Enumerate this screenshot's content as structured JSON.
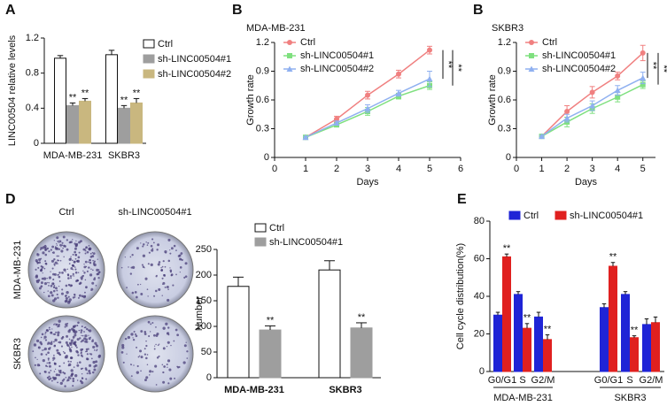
{
  "chart_data": [
    {
      "type": "bar",
      "panel": "A",
      "ylabel": "LINC00504 relative levels",
      "categories": [
        "MDA-MB-231",
        "SKBR3"
      ],
      "series": [
        {
          "name": "Ctrl",
          "color": "#ffffff",
          "values": [
            0.97,
            1.01
          ],
          "errors": [
            0.03,
            0.05
          ]
        },
        {
          "name": "sh-LINC00504#1",
          "color": "#9e9e9e",
          "values": [
            0.43,
            0.4
          ],
          "errors": [
            0.03,
            0.03
          ],
          "significance": [
            "**",
            "**"
          ]
        },
        {
          "name": "sh-LINC00504#2",
          "color": "#c9b77f",
          "values": [
            0.48,
            0.46
          ],
          "errors": [
            0.03,
            0.05
          ],
          "significance": [
            "**",
            "**"
          ]
        }
      ],
      "ylim": [
        0,
        1.2
      ],
      "yticks": [
        0,
        0.4,
        0.8,
        1.2
      ]
    },
    {
      "type": "line",
      "panel": "B",
      "subtitle": "MDA-MB-231",
      "xlabel": "Days",
      "ylabel": "Growth rate",
      "x": [
        1,
        2,
        3,
        4,
        5
      ],
      "series": [
        {
          "name": "Ctrl",
          "color": "#f08080",
          "values": [
            0.21,
            0.4,
            0.65,
            0.87,
            1.12
          ],
          "errors": [
            0.01,
            0.03,
            0.04,
            0.04,
            0.04
          ]
        },
        {
          "name": "sh-LINC00504#1",
          "color": "#7fe07f",
          "values": [
            0.21,
            0.34,
            0.48,
            0.64,
            0.75
          ],
          "errors": [
            0.01,
            0.02,
            0.04,
            0.03,
            0.04
          ]
        },
        {
          "name": "sh-LINC00504#2",
          "color": "#8fb0f0",
          "values": [
            0.21,
            0.36,
            0.51,
            0.67,
            0.82
          ],
          "errors": [
            0.01,
            0.02,
            0.04,
            0.03,
            0.08
          ]
        }
      ],
      "xlim": [
        0,
        6
      ],
      "xticks": [
        0,
        1,
        2,
        3,
        4,
        5,
        6
      ],
      "ylim": [
        0,
        1.2
      ],
      "yticks": [
        0,
        0.3,
        0.6,
        0.9,
        1.2
      ],
      "annotations": [
        "**",
        "**"
      ]
    },
    {
      "type": "line",
      "panel": "B",
      "subtitle": "SKBR3",
      "xlabel": "Days",
      "ylabel": "Growth rate",
      "x": [
        1,
        2,
        3,
        4,
        5
      ],
      "series": [
        {
          "name": "Ctrl",
          "color": "#f08080",
          "values": [
            0.22,
            0.48,
            0.68,
            0.85,
            1.09
          ],
          "errors": [
            0.01,
            0.06,
            0.06,
            0.04,
            0.08
          ]
        },
        {
          "name": "sh-LINC00504#1",
          "color": "#7fe07f",
          "values": [
            0.22,
            0.37,
            0.51,
            0.63,
            0.76
          ],
          "errors": [
            0.01,
            0.05,
            0.05,
            0.05,
            0.04
          ]
        },
        {
          "name": "sh-LINC00504#2",
          "color": "#8fb0f0",
          "values": [
            0.22,
            0.41,
            0.54,
            0.7,
            0.83
          ],
          "errors": [
            0.01,
            0.04,
            0.05,
            0.05,
            0.06
          ]
        }
      ],
      "xlim": [
        0,
        5.5
      ],
      "xticks": [
        0,
        1,
        2,
        3,
        4,
        5
      ],
      "ylim": [
        0,
        1.2
      ],
      "yticks": [
        0,
        0.3,
        0.6,
        0.9,
        1.2
      ],
      "annotations": [
        "**",
        "**"
      ]
    },
    {
      "type": "bar",
      "panel": "D",
      "ylabel": "Number",
      "images": {
        "columns": [
          "Ctrl",
          "sh-LINC00504#1"
        ],
        "rows": [
          "MDA-MB-231",
          "SKBR3"
        ]
      },
      "categories": [
        "MDA-MB-231",
        "SKBR3"
      ],
      "series": [
        {
          "name": "Ctrl",
          "color": "#ffffff",
          "values": [
            178,
            210
          ],
          "errors": [
            18,
            18
          ]
        },
        {
          "name": "sh-LINC00504#1",
          "color": "#9e9e9e",
          "values": [
            93,
            97
          ],
          "errors": [
            8,
            10
          ],
          "significance": [
            "**",
            "**"
          ]
        }
      ],
      "ylim": [
        0,
        250
      ],
      "yticks": [
        0,
        50,
        100,
        150,
        200,
        250
      ]
    },
    {
      "type": "bar",
      "panel": "E",
      "ylabel": "Cell cycle distribution(%)",
      "categories": [
        "G0/G1",
        "S",
        "G2/M",
        "G0/G1",
        "S",
        "G2/M"
      ],
      "groups": [
        "MDA-MB-231",
        "SKBR3"
      ],
      "series": [
        {
          "name": "Ctrl",
          "color": "#1f24d6",
          "values": [
            30,
            41,
            29,
            34,
            41,
            25
          ],
          "errors": [
            1.5,
            1.5,
            2.5,
            2,
            1.5,
            3
          ]
        },
        {
          "name": "sh-LINC00504#1",
          "color": "#e0201f",
          "values": [
            61,
            23,
            17,
            56,
            18,
            26
          ],
          "errors": [
            1.5,
            2.5,
            2.5,
            2,
            1,
            3
          ],
          "significance": [
            "**",
            "**",
            "**",
            "**",
            "**",
            null
          ]
        }
      ],
      "ylim": [
        0,
        80
      ],
      "yticks": [
        0,
        20,
        40,
        60,
        80
      ]
    }
  ]
}
